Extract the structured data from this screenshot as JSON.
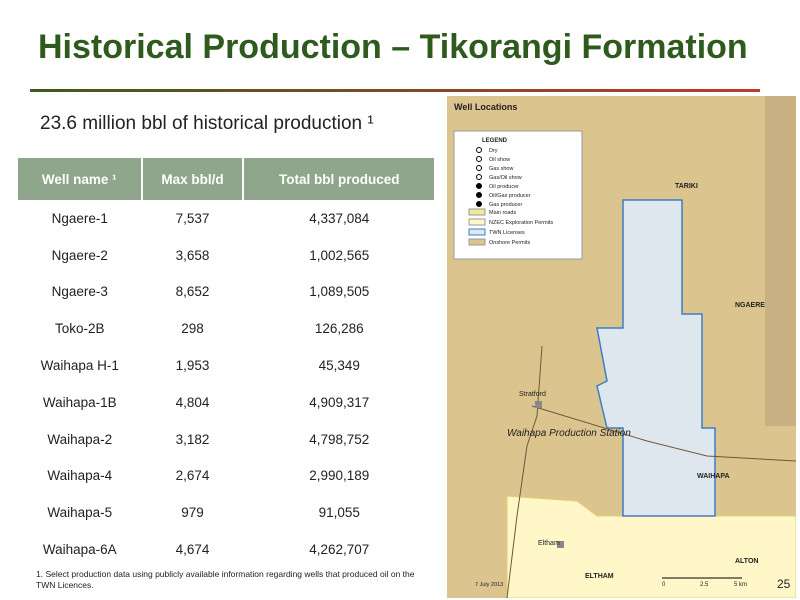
{
  "header": {
    "title": "Historical Production – Tikorangi Formation"
  },
  "subtitle": "23.6 million bbl of historical production ¹",
  "table": {
    "columns": [
      "Well name ¹",
      "Max bbl/d",
      "Total bbl produced"
    ],
    "rows": [
      [
        "Ngaere-1",
        "7,537",
        "4,337,084"
      ],
      [
        "Ngaere-2",
        "3,658",
        "1,002,565"
      ],
      [
        "Ngaere-3",
        "8,652",
        "1,089,505"
      ],
      [
        "Toko-2B",
        "298",
        "126,286"
      ],
      [
        "Waihapa H-1",
        "1,953",
        "45,349"
      ],
      [
        "Waihapa-1B",
        "4,804",
        "4,909,317"
      ],
      [
        "Waihapa-2",
        "3,182",
        "4,798,752"
      ],
      [
        "Waihapa-4",
        "2,674",
        "2,990,189"
      ],
      [
        "Waihapa-5",
        "979",
        "91,055"
      ],
      [
        "Waihapa-6A",
        "4,674",
        "4,262,707"
      ]
    ]
  },
  "footnote": "1. Select production data using publicly available information regarding wells that produced oil on the TWN Licences.",
  "map": {
    "title": "Well Locations",
    "legend_title": "LEGEND",
    "legend": [
      "Dry",
      "Oil show",
      "Gas show",
      "Gas/Oil show",
      "Oil producer",
      "Oil/Gas producer",
      "Gas producer",
      "Main roads",
      "NZEC Exploration Permits",
      "TWN Licenses",
      "Onshore Permits"
    ],
    "areas": [
      "TARIKI",
      "NGAERE",
      "WAIHAPA",
      "ALTON",
      "ELTHAM"
    ],
    "towns": [
      "Stratford",
      "Eltham"
    ],
    "station": "Waihapa Production Station",
    "date": "7 July 2013",
    "scale": [
      "0",
      "2.5",
      "5 km"
    ]
  },
  "page_number": "25"
}
